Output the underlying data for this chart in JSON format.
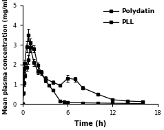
{
  "title": "",
  "xlabel": "Time (h)",
  "ylabel": "Mean plasma concentration (mg/mL)",
  "xlim": [
    0,
    18
  ],
  "ylim": [
    0,
    5
  ],
  "yticks": [
    0,
    1,
    2,
    3,
    4,
    5
  ],
  "xticks": [
    0,
    6,
    12,
    18
  ],
  "polydatin_x": [
    0,
    0.083,
    0.167,
    0.25,
    0.5,
    0.75,
    1.0,
    1.5,
    2.0,
    3.0,
    4.0,
    5.0,
    6.0,
    7.0,
    8.0,
    10.0,
    12.0,
    14.0,
    16.0
  ],
  "polydatin_y": [
    0.0,
    1.05,
    1.8,
    2.05,
    2.9,
    3.5,
    2.85,
    2.1,
    1.65,
    1.3,
    1.1,
    0.95,
    1.3,
    1.25,
    0.82,
    0.5,
    0.22,
    0.15,
    0.12
  ],
  "polydatin_err": [
    0,
    0.1,
    0.2,
    0.2,
    0.28,
    0.32,
    0.22,
    0.18,
    0.15,
    0.1,
    0.08,
    0.08,
    0.18,
    0.12,
    0.08,
    0.06,
    0.04,
    0.03,
    0.02
  ],
  "pll_x": [
    0,
    0.083,
    0.167,
    0.25,
    0.5,
    0.75,
    1.0,
    1.5,
    2.0,
    2.5,
    3.0,
    3.5,
    4.0,
    5.0,
    5.5,
    6.0,
    8.0,
    10.0,
    12.0,
    14.0,
    16.0
  ],
  "pll_y": [
    0.0,
    0.55,
    1.05,
    1.45,
    1.85,
    2.25,
    3.1,
    2.8,
    1.95,
    1.6,
    1.2,
    0.95,
    0.7,
    0.15,
    0.1,
    0.08,
    0.06,
    0.05,
    0.04,
    0.03,
    0.02
  ],
  "pll_err": [
    0,
    0.08,
    0.12,
    0.12,
    0.18,
    0.22,
    0.22,
    0.18,
    0.15,
    0.12,
    0.1,
    0.08,
    0.06,
    0.03,
    0.02,
    0.02,
    0.02,
    0.01,
    0.01,
    0.01,
    0.01
  ],
  "line_color": "#000000",
  "marker": "s",
  "markersize": 3.0,
  "linewidth": 0.9,
  "legend_polydatin": "Polydatin",
  "legend_pll": "PLL",
  "background_color": "#ffffff"
}
